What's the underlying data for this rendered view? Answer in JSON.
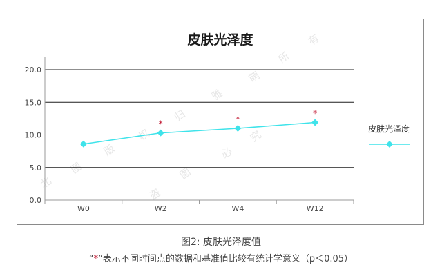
{
  "chart_data": {
    "type": "line",
    "title": "皮肤光泽度",
    "categories": [
      "W0",
      "W2",
      "W4",
      "W12"
    ],
    "yticks": [
      "0.0",
      "5.0",
      "10.0",
      "15.0",
      "20.0"
    ],
    "ylim": [
      0,
      20
    ],
    "series": [
      {
        "name": "皮肤光泽度",
        "values": [
          8.6,
          10.3,
          11.0,
          11.9
        ],
        "significant": [
          false,
          true,
          true,
          true
        ],
        "color": "#3fe3ea",
        "marker": "diamond"
      }
    ],
    "significance_marker": "*",
    "significance_color": "#c0152f",
    "grid": "horizontal",
    "legend_position": "right"
  },
  "watermark": [
    "北",
    "图",
    "版",
    "权",
    "归",
    "雅",
    "萌",
    "所",
    "有",
    "盗",
    "图",
    "必",
    "究"
  ],
  "caption": {
    "figure_label": "图2: 皮肤光泽度值",
    "note_open": "“",
    "note_star": "*",
    "note_rest": "”表示不同时间点的数据和基准值比较有统计学意义（p＜0.05）"
  }
}
